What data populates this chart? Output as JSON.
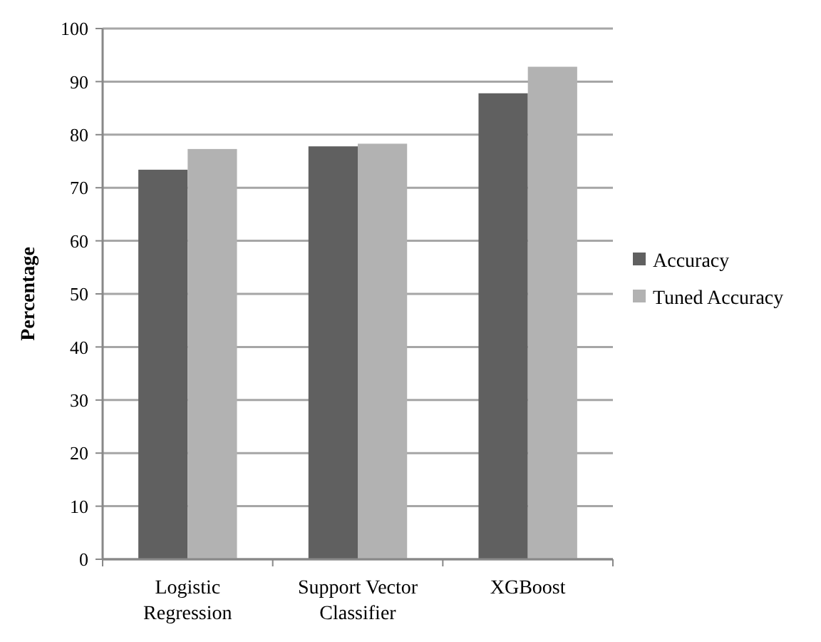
{
  "chart_data": {
    "type": "bar",
    "ylabel": "Percentage",
    "categories": [
      "Logistic Regression",
      "Support Vector Classifier",
      "XGBoost"
    ],
    "series": [
      {
        "name": "Accuracy",
        "color": "#606060",
        "values": [
          73.4,
          77.8,
          87.8
        ]
      },
      {
        "name": "Tuned Accuracy",
        "color": "#b2b2b2",
        "values": [
          77.3,
          78.3,
          92.8
        ]
      }
    ],
    "ylim": [
      0,
      100
    ],
    "yticks": [
      0,
      10,
      20,
      30,
      40,
      50,
      60,
      70,
      80,
      90,
      100
    ],
    "grid": "y",
    "legend": "right"
  }
}
